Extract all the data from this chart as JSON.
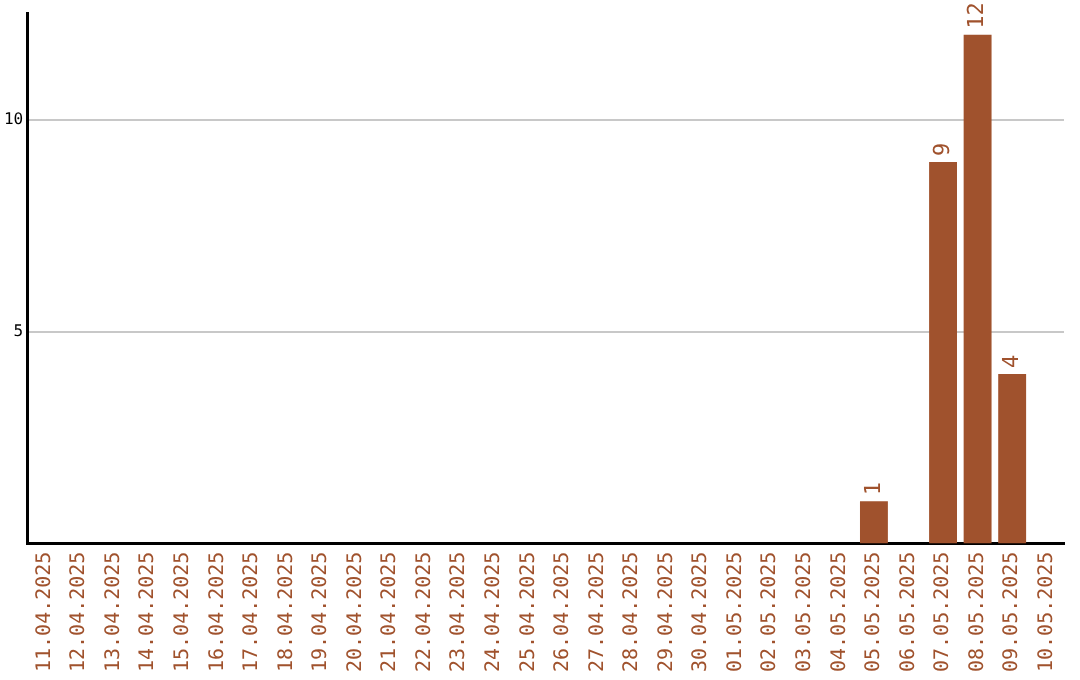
{
  "chart_data": {
    "type": "bar",
    "categories": [
      "11.04.2025",
      "12.04.2025",
      "13.04.2025",
      "14.04.2025",
      "15.04.2025",
      "16.04.2025",
      "17.04.2025",
      "18.04.2025",
      "19.04.2025",
      "20.04.2025",
      "21.04.2025",
      "22.04.2025",
      "23.04.2025",
      "24.04.2025",
      "25.04.2025",
      "26.04.2025",
      "27.04.2025",
      "28.04.2025",
      "29.04.2025",
      "30.04.2025",
      "01.05.2025",
      "02.05.2025",
      "03.05.2025",
      "04.05.2025",
      "05.05.2025",
      "06.05.2025",
      "07.05.2025",
      "08.05.2025",
      "09.05.2025",
      "10.05.2025"
    ],
    "values": [
      0,
      0,
      0,
      0,
      0,
      0,
      0,
      0,
      0,
      0,
      0,
      0,
      0,
      0,
      0,
      0,
      0,
      0,
      0,
      0,
      0,
      0,
      0,
      0,
      1,
      0,
      9,
      12,
      4,
      0
    ],
    "value_labels": [
      null,
      null,
      null,
      null,
      null,
      null,
      null,
      null,
      null,
      null,
      null,
      null,
      null,
      null,
      null,
      null,
      null,
      null,
      null,
      null,
      null,
      null,
      null,
      null,
      "1",
      null,
      "9",
      "12",
      "4",
      null
    ],
    "color": "#a0522d",
    "ylim": [
      0,
      12.5
    ],
    "yticks": [
      5,
      10
    ],
    "grid": "y",
    "legend": false
  }
}
